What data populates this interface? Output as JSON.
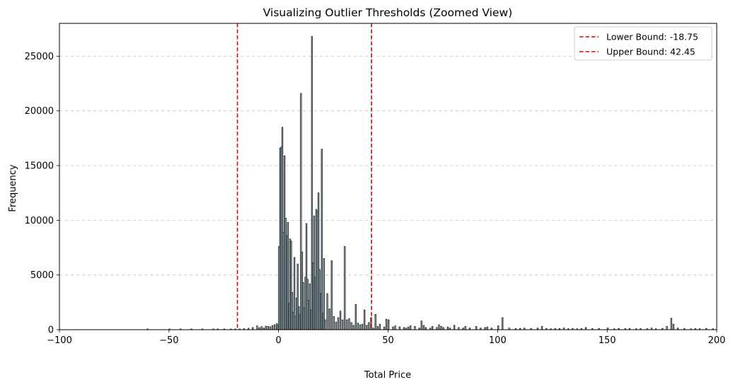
{
  "chart_data": {
    "type": "bar",
    "title": "Visualizing Outlier Thresholds (Zoomed View)",
    "xlabel": "Total Price",
    "ylabel": "Frequency",
    "xlim": [
      -100,
      200
    ],
    "ylim": [
      0,
      28000
    ],
    "xticks": [
      "−100",
      "−50",
      "0",
      "50",
      "100",
      "150",
      "200"
    ],
    "xtick_values": [
      -100,
      -50,
      0,
      50,
      100,
      150,
      200
    ],
    "yticks": [
      "0",
      "5000",
      "10000",
      "15000",
      "20000",
      "25000"
    ],
    "ytick_values": [
      0,
      5000,
      10000,
      15000,
      20000,
      25000
    ],
    "grid": "y-dashed",
    "legend_position": "top-right",
    "bar_fill": "#a7c7d3",
    "bar_edge": "#1a1a1a",
    "threshold_color": "#e00000",
    "bars": [
      [
        -60,
        30
      ],
      [
        -50,
        25
      ],
      [
        -45,
        20
      ],
      [
        -40,
        30
      ],
      [
        -35,
        25
      ],
      [
        -30,
        30
      ],
      [
        -28,
        40
      ],
      [
        -25,
        35
      ],
      [
        -22,
        45
      ],
      [
        -20,
        40
      ],
      [
        -18,
        60
      ],
      [
        -16,
        90
      ],
      [
        -14,
        130
      ],
      [
        -12,
        200
      ],
      [
        -10,
        350
      ],
      [
        -9,
        180
      ],
      [
        -8,
        280
      ],
      [
        -7,
        150
      ],
      [
        -6,
        320
      ],
      [
        -5,
        300
      ],
      [
        -4,
        260
      ],
      [
        -3,
        380
      ],
      [
        -2,
        450
      ],
      [
        -1,
        550
      ],
      [
        -0.5,
        400
      ],
      [
        0,
        7600
      ],
      [
        0.5,
        16600
      ],
      [
        1,
        16700
      ],
      [
        1.5,
        18500
      ],
      [
        2,
        8900
      ],
      [
        2.5,
        15900
      ],
      [
        3,
        10200
      ],
      [
        3.5,
        8600
      ],
      [
        4,
        9800
      ],
      [
        4.5,
        2400
      ],
      [
        5,
        8300
      ],
      [
        5.5,
        8100
      ],
      [
        6,
        3400
      ],
      [
        6.5,
        1600
      ],
      [
        7,
        6600
      ],
      [
        7.5,
        1200
      ],
      [
        8,
        2900
      ],
      [
        8.5,
        6000
      ],
      [
        9,
        2100
      ],
      [
        9.5,
        1400
      ],
      [
        10,
        21600
      ],
      [
        10.5,
        7100
      ],
      [
        11,
        4300
      ],
      [
        11.5,
        2000
      ],
      [
        12,
        4800
      ],
      [
        12.5,
        9700
      ],
      [
        13,
        4600
      ],
      [
        13.5,
        2700
      ],
      [
        14,
        4200
      ],
      [
        14.5,
        1800
      ],
      [
        15,
        26800
      ],
      [
        15.5,
        6100
      ],
      [
        16,
        10400
      ],
      [
        16.5,
        4800
      ],
      [
        17,
        11000
      ],
      [
        17.5,
        10800
      ],
      [
        18,
        12500
      ],
      [
        18.5,
        5500
      ],
      [
        19,
        3300
      ],
      [
        19.5,
        16500
      ],
      [
        20,
        1500
      ],
      [
        20.5,
        6500
      ],
      [
        21,
        900
      ],
      [
        22,
        3300
      ],
      [
        23,
        1900
      ],
      [
        24,
        6300
      ],
      [
        25,
        1200
      ],
      [
        26,
        700
      ],
      [
        27,
        1100
      ],
      [
        28,
        1700
      ],
      [
        29,
        900
      ],
      [
        30,
        7600
      ],
      [
        31,
        900
      ],
      [
        32,
        1000
      ],
      [
        33,
        650
      ],
      [
        34,
        400
      ],
      [
        35,
        2300
      ],
      [
        36,
        600
      ],
      [
        37,
        450
      ],
      [
        38,
        500
      ],
      [
        39,
        1800
      ],
      [
        40,
        400
      ],
      [
        41,
        650
      ],
      [
        42,
        1100
      ],
      [
        43,
        150
      ],
      [
        44,
        1400
      ],
      [
        45,
        300
      ],
      [
        46,
        500
      ],
      [
        48,
        250
      ],
      [
        49,
        950
      ],
      [
        50,
        900
      ],
      [
        52,
        250
      ],
      [
        53,
        350
      ],
      [
        55,
        250
      ],
      [
        57,
        200
      ],
      [
        58,
        150
      ],
      [
        59,
        250
      ],
      [
        60,
        350
      ],
      [
        62,
        300
      ],
      [
        64,
        150
      ],
      [
        65,
        800
      ],
      [
        66,
        400
      ],
      [
        67,
        200
      ],
      [
        69,
        150
      ],
      [
        70,
        300
      ],
      [
        72,
        200
      ],
      [
        73,
        450
      ],
      [
        74,
        300
      ],
      [
        75,
        200
      ],
      [
        77,
        250
      ],
      [
        78,
        150
      ],
      [
        80,
        400
      ],
      [
        82,
        200
      ],
      [
        84,
        150
      ],
      [
        85,
        300
      ],
      [
        87,
        150
      ],
      [
        90,
        300
      ],
      [
        92,
        150
      ],
      [
        94,
        200
      ],
      [
        95,
        250
      ],
      [
        97,
        150
      ],
      [
        100,
        350
      ],
      [
        102,
        1100
      ],
      [
        105,
        150
      ],
      [
        108,
        100
      ],
      [
        110,
        120
      ],
      [
        112,
        150
      ],
      [
        115,
        120
      ],
      [
        118,
        150
      ],
      [
        120,
        300
      ],
      [
        122,
        120
      ],
      [
        124,
        80
      ],
      [
        126,
        120
      ],
      [
        128,
        100
      ],
      [
        130,
        150
      ],
      [
        132,
        90
      ],
      [
        134,
        120
      ],
      [
        136,
        80
      ],
      [
        138,
        120
      ],
      [
        140,
        200
      ],
      [
        143,
        100
      ],
      [
        146,
        120
      ],
      [
        150,
        150
      ],
      [
        153,
        80
      ],
      [
        155,
        120
      ],
      [
        158,
        100
      ],
      [
        160,
        120
      ],
      [
        163,
        90
      ],
      [
        165,
        100
      ],
      [
        168,
        90
      ],
      [
        170,
        150
      ],
      [
        172,
        80
      ],
      [
        175,
        120
      ],
      [
        177,
        300
      ],
      [
        179,
        1050
      ],
      [
        180,
        500
      ],
      [
        182,
        150
      ],
      [
        185,
        120
      ],
      [
        188,
        80
      ],
      [
        190,
        100
      ],
      [
        192,
        90
      ],
      [
        195,
        120
      ],
      [
        198,
        80
      ]
    ],
    "thresholds": [
      {
        "name": "Lower Bound: -18.75",
        "value": -18.75
      },
      {
        "name": "Upper Bound: 42.45",
        "value": 42.45
      }
    ]
  }
}
